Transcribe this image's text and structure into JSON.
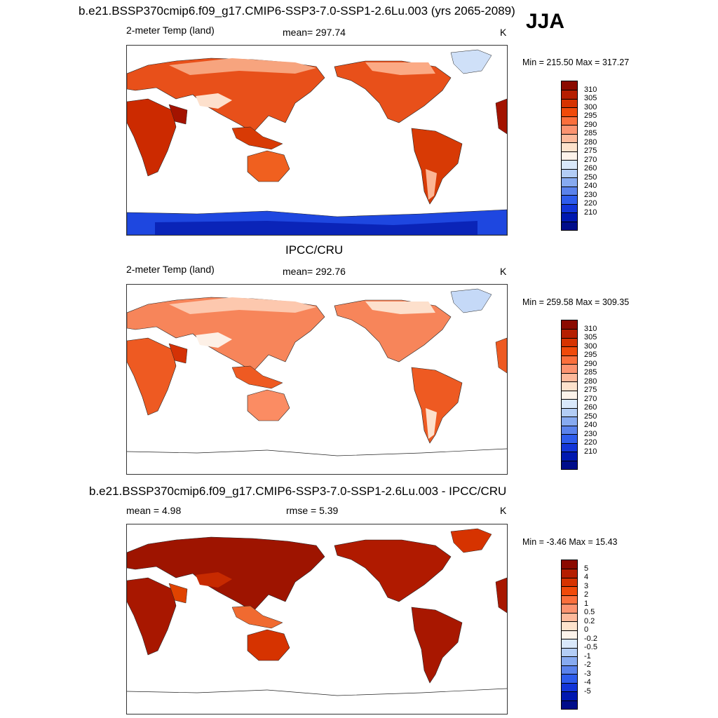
{
  "figure": {
    "season": "JJA",
    "panels": [
      {
        "title": "b.e21.BSSP370cmip6.f09_g17.CMIP6-SSP3-7.0-SSP1-2.6Lu.003 (yrs 2065-2089)",
        "left_label": "2-meter Temp (land)",
        "center_label": "mean= 297.74",
        "units": "K",
        "minmax": "Min = 215.50 Max = 317.27",
        "colorbar_ticks": [
          "310",
          "305",
          "300",
          "295",
          "290",
          "285",
          "280",
          "275",
          "270",
          "260",
          "250",
          "240",
          "230",
          "220",
          "210"
        ],
        "colorbar_colors": [
          "#8b0a00",
          "#b51e00",
          "#d63300",
          "#f04a0a",
          "#fb6f3c",
          "#fc9370",
          "#fdb99b",
          "#fde2cc",
          "#fdf3ea",
          "#d9e8fa",
          "#b3cdf5",
          "#87aaf0",
          "#5a82ec",
          "#2e5cec",
          "#1235d8",
          "#0018b0",
          "#000d8a"
        ]
      },
      {
        "title": "IPCC/CRU",
        "left_label": "2-meter Temp (land)",
        "center_label": "mean= 292.76",
        "units": "K",
        "minmax": "Min = 259.58 Max = 309.35",
        "colorbar_ticks": [
          "310",
          "305",
          "300",
          "295",
          "290",
          "285",
          "280",
          "275",
          "270",
          "260",
          "250",
          "240",
          "230",
          "220",
          "210"
        ],
        "colorbar_colors": [
          "#8b0a00",
          "#b51e00",
          "#d63300",
          "#f04a0a",
          "#fb6f3c",
          "#fc9370",
          "#fdb99b",
          "#fde2cc",
          "#fdf3ea",
          "#d9e8fa",
          "#b3cdf5",
          "#87aaf0",
          "#5a82ec",
          "#2e5cec",
          "#1235d8",
          "#0018b0",
          "#000d8a"
        ]
      },
      {
        "title": "b.e21.BSSP370cmip6.f09_g17.CMIP6-SSP3-7.0-SSP1-2.6Lu.003 - IPCC/CRU",
        "left_label": "mean =   4.98",
        "center_label": "rmse =   5.39",
        "units": "K",
        "minmax": "Min =  -3.46 Max =  15.43",
        "colorbar_ticks": [
          "5",
          "4",
          "3",
          "2",
          "1",
          "0.5",
          "0.2",
          "0",
          "-0.2",
          "-0.5",
          "-1",
          "-2",
          "-3",
          "-4",
          "-5"
        ],
        "colorbar_colors": [
          "#8b0a00",
          "#b51e00",
          "#d63300",
          "#f04a0a",
          "#fb6f3c",
          "#fc9370",
          "#fdb99b",
          "#fde2cc",
          "#fdf3ea",
          "#d9e8fa",
          "#b3cdf5",
          "#87aaf0",
          "#5a82ec",
          "#2e5cec",
          "#1235d8",
          "#0018b0",
          "#000d8a"
        ]
      }
    ]
  },
  "chart_data": [
    {
      "type": "heatmap",
      "title": "b.e21.BSSP370cmip6.f09_g17.CMIP6-SSP3-7.0-SSP1-2.6Lu.003 (yrs 2065-2089)",
      "variable": "2-meter Temp (land)",
      "units": "K",
      "season": "JJA",
      "mean": 297.74,
      "min": 215.5,
      "max": 317.27,
      "levels": [
        210,
        220,
        230,
        240,
        250,
        260,
        270,
        275,
        280,
        285,
        290,
        295,
        300,
        305,
        310
      ]
    },
    {
      "type": "heatmap",
      "title": "IPCC/CRU",
      "variable": "2-meter Temp (land)",
      "units": "K",
      "mean": 292.76,
      "min": 259.58,
      "max": 309.35,
      "levels": [
        210,
        220,
        230,
        240,
        250,
        260,
        270,
        275,
        280,
        285,
        290,
        295,
        300,
        305,
        310
      ]
    },
    {
      "type": "heatmap",
      "title": "b.e21.BSSP370cmip6.f09_g17.CMIP6-SSP3-7.0-SSP1-2.6Lu.003 - IPCC/CRU",
      "units": "K",
      "mean": 4.98,
      "rmse": 5.39,
      "min": -3.46,
      "max": 15.43,
      "levels": [
        -5,
        -4,
        -3,
        -2,
        -1,
        -0.5,
        -0.2,
        0,
        0.2,
        0.5,
        1,
        2,
        3,
        4,
        5
      ]
    }
  ]
}
